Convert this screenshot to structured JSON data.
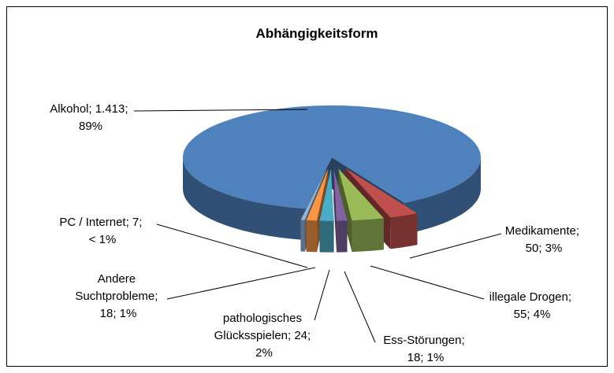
{
  "chart_data": {
    "type": "pie3d",
    "title": "Abhängigkeitsform",
    "values": [
      1413,
      50,
      55,
      18,
      24,
      18,
      7
    ],
    "value_labels": [
      "Alkohol; 1.413; 89%",
      "Medikamente; 50; 3%",
      "illegale Drogen; 55; 4%",
      "Ess-Störungen; 18; 1%",
      "pathologisches Glücksspielen; 24; 2%",
      "Andere Suchtprobleme; 18; 1%",
      "PC / Internet; 7; < 1%"
    ],
    "colors": [
      "#4f81bd",
      "#c0504d",
      "#9bbb59",
      "#8064a2",
      "#4bacc6",
      "#f79646",
      "#95b3d7"
    ]
  }
}
